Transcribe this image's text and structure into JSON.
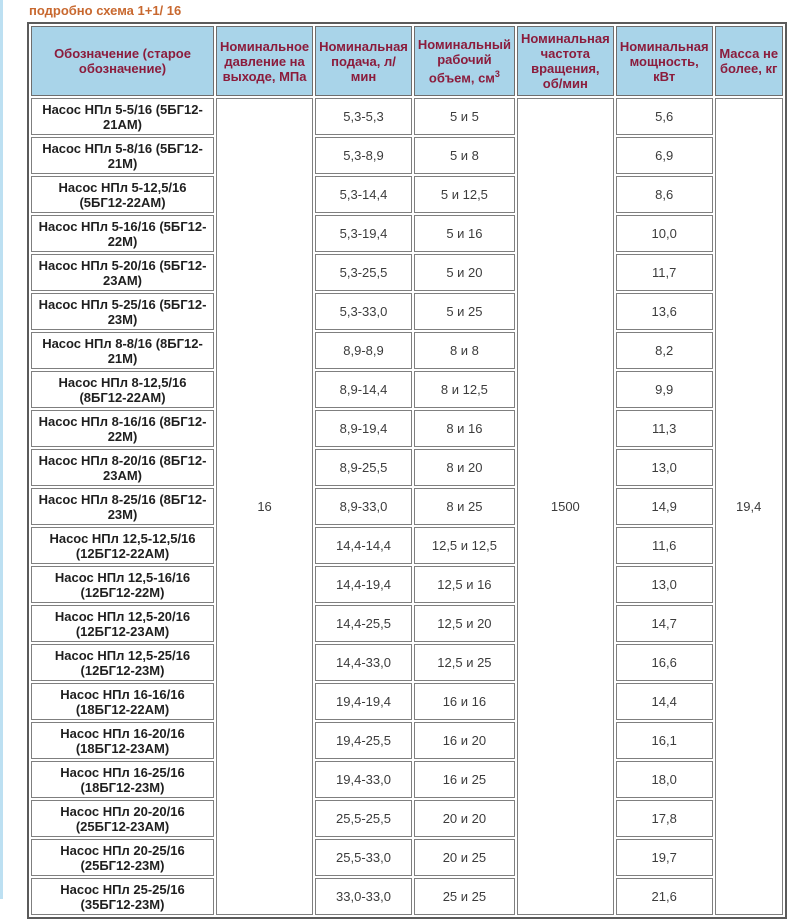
{
  "page": {
    "link_label": "подробно схема 1+1/ 16"
  },
  "colors": {
    "header_bg": "#A9D4E9",
    "header_text": "#8B1C3C",
    "link": "#C8682F",
    "left_strip": "#BDE0F2",
    "cell_border": "#7F7F7F",
    "table_border": "#5B5B5B"
  },
  "table": {
    "headers": [
      {
        "label": "Обозначение (старое обозначение)"
      },
      {
        "label": "Номинальное давление на выходе, МПа"
      },
      {
        "label": "Номинальная подача, л/ мин"
      },
      {
        "label": "Номинальный рабочий объем, см",
        "sup": "3"
      },
      {
        "label": "Номинальная частота вращения, об/мин"
      },
      {
        "label": "Номинальная мощность, кВт"
      },
      {
        "label": "Масса не более, кг"
      }
    ],
    "merged": {
      "pressure": "16",
      "speed": "1500",
      "mass": "19,4"
    },
    "rows": [
      {
        "name": "Насос НПл 5-5/16 (5БГ12-21АМ)",
        "flow": "5,3-5,3",
        "volume": "5 и 5",
        "power": "5,6"
      },
      {
        "name": "Насос НПл 5-8/16 (5БГ12-21М)",
        "flow": "5,3-8,9",
        "volume": "5 и 8",
        "power": "6,9"
      },
      {
        "name": "Насос НПл 5-12,5/16 (5БГ12-22АМ)",
        "flow": "5,3-14,4",
        "volume": "5 и 12,5",
        "power": "8,6"
      },
      {
        "name": "Насос НПл 5-16/16 (5БГ12-22М)",
        "flow": "5,3-19,4",
        "volume": "5 и 16",
        "power": "10,0"
      },
      {
        "name": "Насос НПл 5-20/16 (5БГ12-23АМ)",
        "flow": "5,3-25,5",
        "volume": "5 и 20",
        "power": "11,7"
      },
      {
        "name": "Насос НПл 5-25/16 (5БГ12-23М)",
        "flow": "5,3-33,0",
        "volume": "5 и 25",
        "power": "13,6"
      },
      {
        "name": "Насос НПл 8-8/16 (8БГ12-21М)",
        "flow": "8,9-8,9",
        "volume": "8 и 8",
        "power": "8,2"
      },
      {
        "name": "Насос НПл 8-12,5/16 (8БГ12-22АМ)",
        "flow": "8,9-14,4",
        "volume": "8 и 12,5",
        "power": "9,9"
      },
      {
        "name": "Насос НПл 8-16/16 (8БГ12-22М)",
        "flow": "8,9-19,4",
        "volume": "8 и 16",
        "power": "11,3"
      },
      {
        "name": "Насос НПл 8-20/16 (8БГ12-23АМ)",
        "flow": "8,9-25,5",
        "volume": "8 и 20",
        "power": "13,0"
      },
      {
        "name": "Насос НПл 8-25/16 (8БГ12-23М)",
        "flow": "8,9-33,0",
        "volume": "8 и 25",
        "power": "14,9"
      },
      {
        "name": "Насос НПл 12,5-12,5/16 (12БГ12-22АМ)",
        "flow": "14,4-14,4",
        "volume": "12,5 и 12,5",
        "power": "11,6"
      },
      {
        "name": "Насос НПл 12,5-16/16 (12БГ12-22М)",
        "flow": "14,4-19,4",
        "volume": "12,5 и 16",
        "power": "13,0"
      },
      {
        "name": "Насос НПл 12,5-20/16 (12БГ12-23АМ)",
        "flow": "14,4-25,5",
        "volume": "12,5 и 20",
        "power": "14,7"
      },
      {
        "name": "Насос НПл 12,5-25/16 (12БГ12-23М)",
        "flow": "14,4-33,0",
        "volume": "12,5 и 25",
        "power": "16,6"
      },
      {
        "name": "Насос НПл 16-16/16 (18БГ12-22АМ)",
        "flow": "19,4-19,4",
        "volume": "16 и 16",
        "power": "14,4"
      },
      {
        "name": "Насос НПл 16-20/16 (18БГ12-23АМ)",
        "flow": "19,4-25,5",
        "volume": "16 и 20",
        "power": "16,1"
      },
      {
        "name": "Насос НПл 16-25/16 (18БГ12-23М)",
        "flow": "19,4-33,0",
        "volume": "16 и 25",
        "power": "18,0"
      },
      {
        "name": "Насос НПл 20-20/16 (25БГ12-23АМ)",
        "flow": "25,5-25,5",
        "volume": "20 и 20",
        "power": "17,8"
      },
      {
        "name": "Насос НПл 20-25/16 (25БГ12-23М)",
        "flow": "25,5-33,0",
        "volume": "20 и 25",
        "power": "19,7"
      },
      {
        "name": "Насос НПл 25-25/16 (35БГ12-23М)",
        "flow": "33,0-33,0",
        "volume": "25 и 25",
        "power": "21,6"
      }
    ]
  }
}
